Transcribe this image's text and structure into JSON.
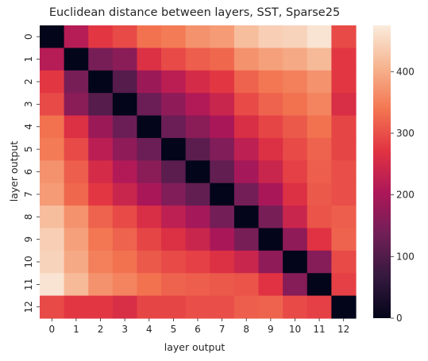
{
  "chart_data": {
    "type": "heatmap",
    "title": "Euclidean distance between layers, SST, Sparse25",
    "xlabel": "layer output",
    "ylabel": "layer output",
    "x_categories": [
      "0",
      "1",
      "2",
      "3",
      "4",
      "5",
      "6",
      "7",
      "8",
      "9",
      "10",
      "11",
      "12"
    ],
    "y_categories": [
      "0",
      "1",
      "2",
      "3",
      "4",
      "5",
      "6",
      "7",
      "8",
      "9",
      "10",
      "11",
      "12"
    ],
    "values": [
      [
        0,
        215,
        275,
        295,
        335,
        345,
        370,
        380,
        420,
        440,
        445,
        465,
        295
      ],
      [
        215,
        0,
        145,
        165,
        265,
        295,
        315,
        325,
        370,
        385,
        395,
        415,
        275
      ],
      [
        275,
        145,
        0,
        105,
        185,
        220,
        255,
        275,
        320,
        340,
        350,
        370,
        275
      ],
      [
        295,
        165,
        105,
        0,
        130,
        170,
        210,
        240,
        295,
        320,
        335,
        355,
        260
      ],
      [
        335,
        265,
        185,
        130,
        0,
        130,
        165,
        200,
        260,
        290,
        310,
        335,
        290
      ],
      [
        345,
        295,
        220,
        170,
        130,
        0,
        110,
        155,
        225,
        265,
        295,
        320,
        290
      ],
      [
        370,
        315,
        255,
        210,
        165,
        110,
        0,
        120,
        195,
        240,
        285,
        315,
        300
      ],
      [
        380,
        325,
        275,
        240,
        200,
        155,
        120,
        0,
        140,
        200,
        265,
        310,
        300
      ],
      [
        420,
        370,
        320,
        295,
        260,
        225,
        195,
        140,
        0,
        145,
        240,
        305,
        315
      ],
      [
        440,
        385,
        340,
        320,
        290,
        265,
        240,
        200,
        145,
        0,
        170,
        270,
        320
      ],
      [
        445,
        395,
        350,
        335,
        310,
        295,
        285,
        265,
        240,
        170,
        0,
        160,
        295
      ],
      [
        465,
        415,
        370,
        355,
        335,
        320,
        315,
        310,
        305,
        270,
        160,
        0,
        285
      ],
      [
        295,
        275,
        275,
        260,
        290,
        290,
        300,
        300,
        315,
        320,
        295,
        285,
        0
      ]
    ],
    "vmin": 0,
    "vmax": 475,
    "colorbar_ticks": [
      0,
      100,
      200,
      300,
      400
    ],
    "colormap": "rocket",
    "colormap_stops": [
      "#03051a",
      "#35193e",
      "#701f57",
      "#ad1759",
      "#e13342",
      "#f37651",
      "#f6b48f",
      "#faebdd"
    ]
  }
}
